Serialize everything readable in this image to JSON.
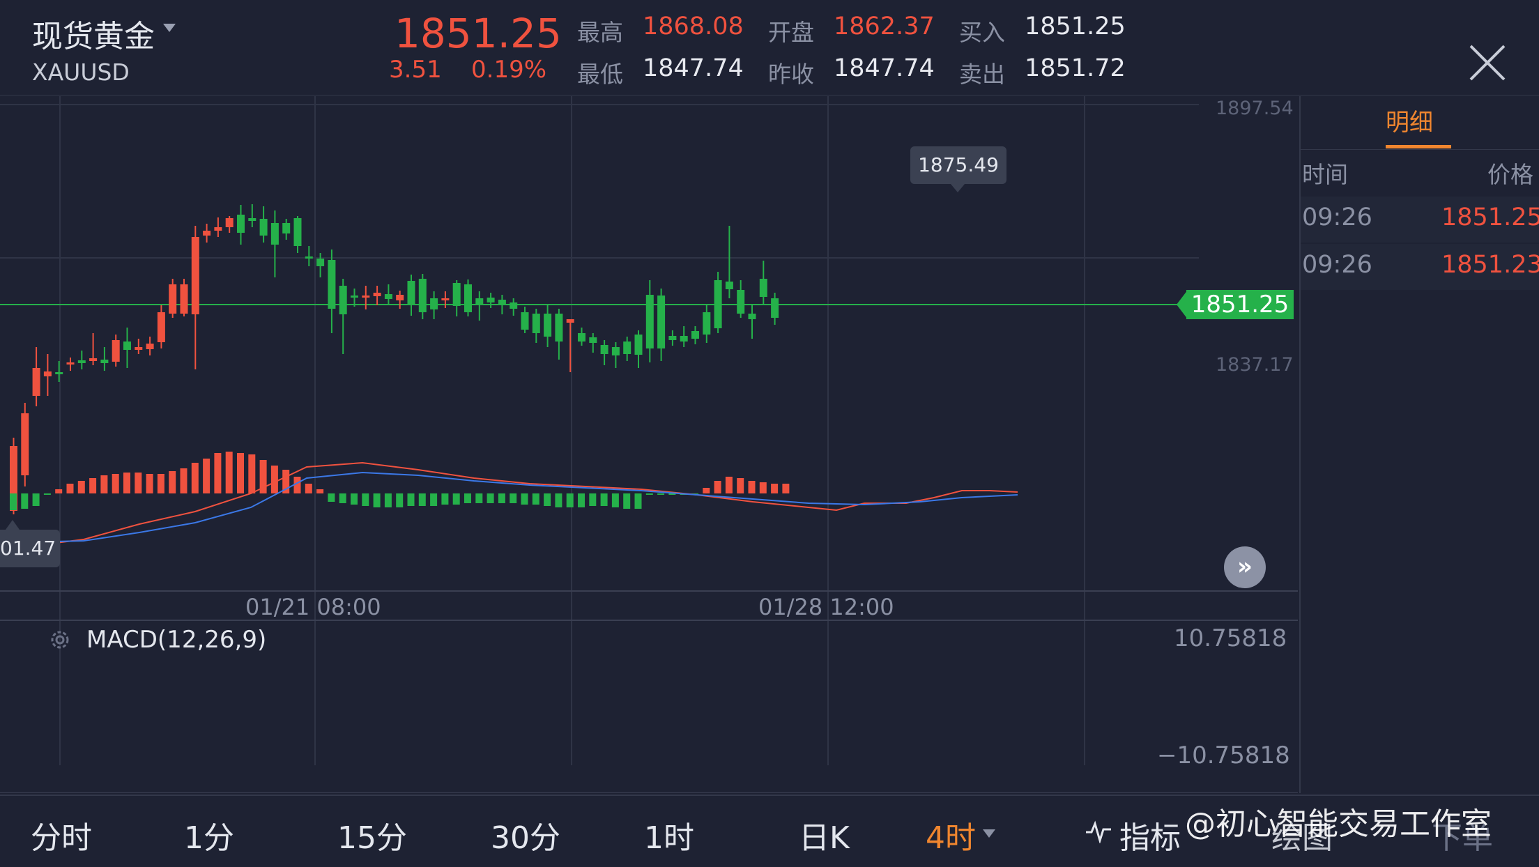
{
  "header": {
    "symbol_name": "现货黄金",
    "symbol_code": "XAUUSD",
    "last_price": "1851.25",
    "change_abs": "3.51",
    "change_pct": "0.19%",
    "quotes": {
      "high_label": "最高",
      "high_value": "1868.08",
      "low_label": "最低",
      "low_value": "1847.74",
      "open_label": "开盘",
      "open_value": "1862.37",
      "prev_close_label": "昨收",
      "prev_close_value": "1847.74",
      "bid_label": "买入",
      "bid_value": "1851.25",
      "ask_label": "卖出",
      "ask_value": "1851.72"
    }
  },
  "chart": {
    "axis_top": "1897.54",
    "axis_mid": "1837.17",
    "current_price_tag": "1851.25",
    "high_marker": "1875.49",
    "low_marker": "01.47",
    "date_labels": [
      "01/21 08:00",
      "01/28 12:00"
    ],
    "macd_label": "MACD(12,26,9)",
    "macd_top": "10.75818",
    "macd_bottom": "−10.75818",
    "colors": {
      "up": "#f0523f",
      "down": "#25b14a",
      "dif": "#f0523f",
      "dea": "#3b78e7"
    }
  },
  "detail_panel": {
    "tab": "明细",
    "col_time": "时间",
    "col_price": "价格",
    "rows": [
      {
        "time": "09:26",
        "price": "1851.25"
      },
      {
        "time": "09:26",
        "price": "1851.23"
      }
    ]
  },
  "bottom_bar": {
    "timeframes": [
      "分时",
      "1分",
      "15分",
      "30分",
      "1时",
      "日K",
      "4时"
    ],
    "indicators_label": "指标",
    "draw_label": "绘图",
    "order_label": "下单",
    "watermark": "@初心智能交易工作室"
  }
}
